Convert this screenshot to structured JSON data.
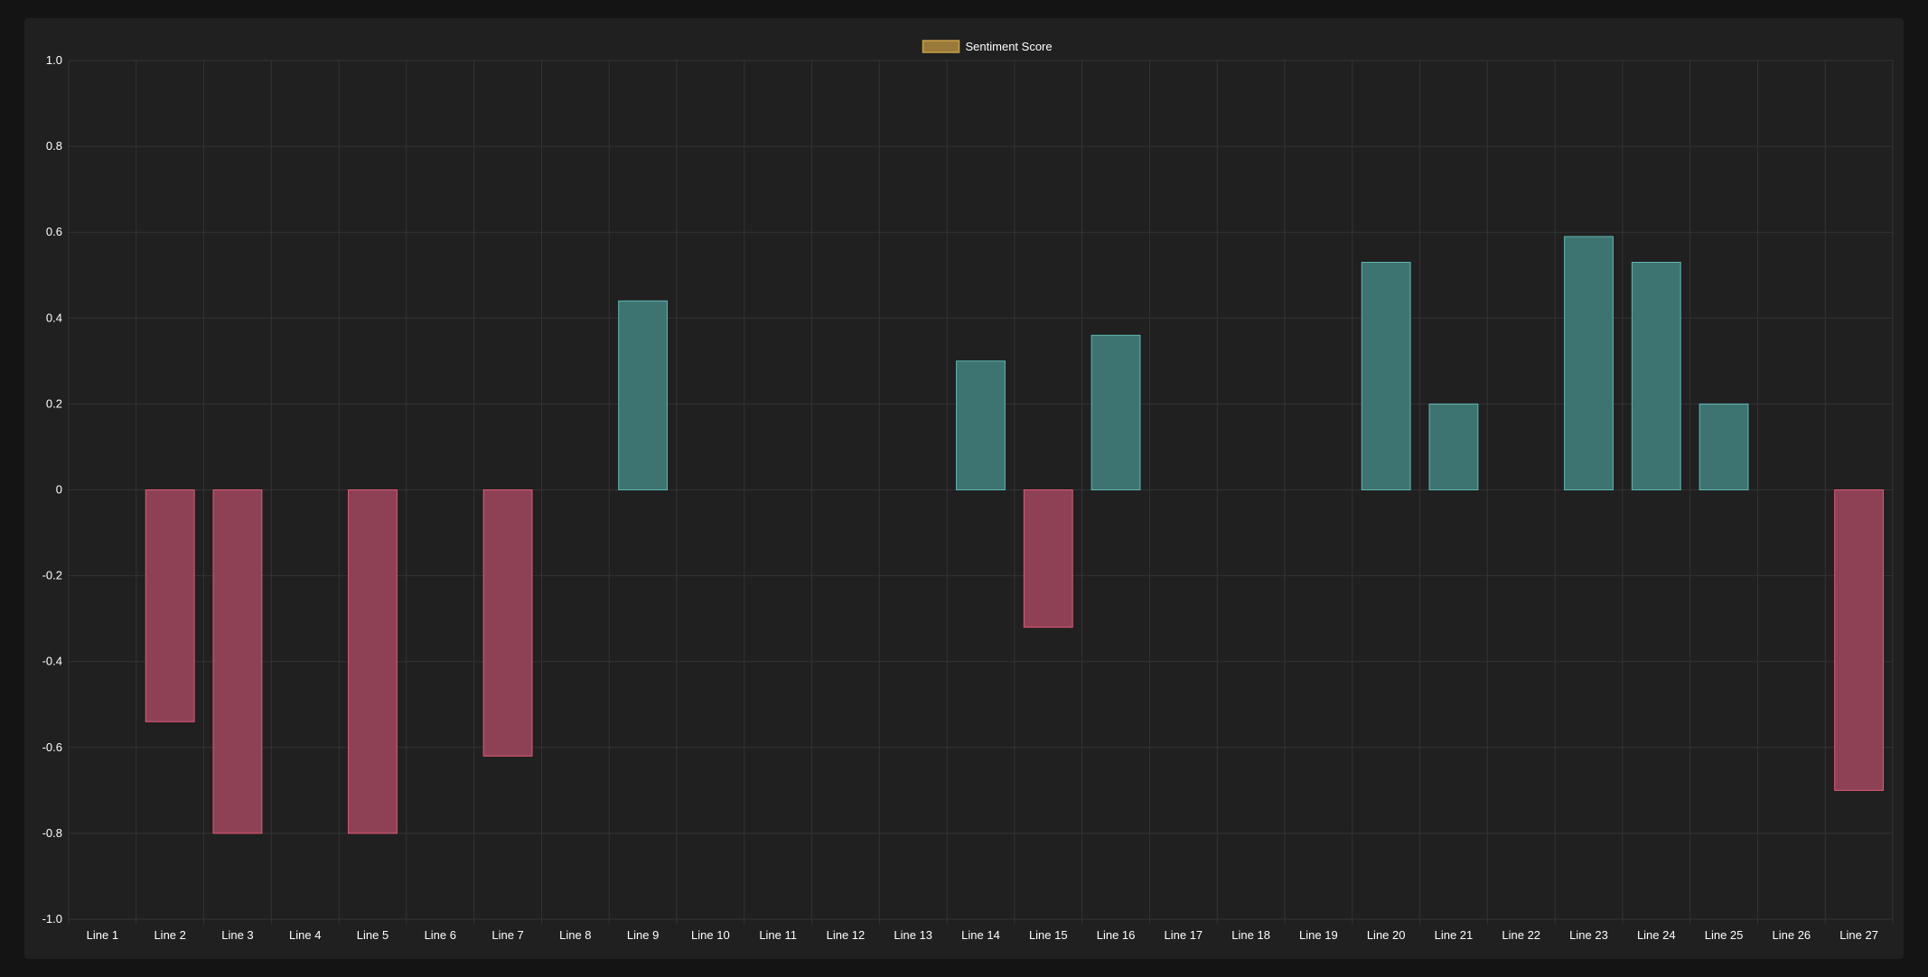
{
  "chart_data": {
    "type": "bar",
    "categories": [
      "Line 1",
      "Line 2",
      "Line 3",
      "Line 4",
      "Line 5",
      "Line 6",
      "Line 7",
      "Line 8",
      "Line 9",
      "Line 10",
      "Line 11",
      "Line 12",
      "Line 13",
      "Line 14",
      "Line 15",
      "Line 16",
      "Line 17",
      "Line 18",
      "Line 19",
      "Line 20",
      "Line 21",
      "Line 22",
      "Line 23",
      "Line 24",
      "Line 25",
      "Line 26",
      "Line 27"
    ],
    "series": [
      {
        "name": "Sentiment Score",
        "values": [
          0,
          -0.54,
          -0.8,
          0,
          -0.8,
          0,
          -0.62,
          0,
          0.44,
          0,
          0,
          0,
          0,
          0.3,
          -0.32,
          0.36,
          0,
          0,
          0,
          0.53,
          0.2,
          0,
          0.59,
          0.53,
          0.2,
          0,
          -0.7
        ]
      }
    ],
    "ylim": [
      -1.0,
      1.0
    ],
    "yticks": [
      1.0,
      0.8,
      0.6,
      0.4,
      0.2,
      0,
      -0.2,
      -0.4,
      -0.6,
      -0.8,
      -1.0
    ],
    "ytick_labels": [
      "1.0",
      "0.8",
      "0.6",
      "0.4",
      "0.2",
      "0",
      "-0.2",
      "-0.4",
      "-0.6",
      "-0.8",
      "-1.0"
    ],
    "grid": true,
    "legend": "top-center",
    "colors": {
      "positive_fill": "#3d7472",
      "positive_stroke": "#5fb8b2",
      "negative_fill": "#8e4155",
      "negative_stroke": "#e05a78",
      "legend_fill": "#9a7a3a",
      "legend_stroke": "#c9a045"
    }
  }
}
